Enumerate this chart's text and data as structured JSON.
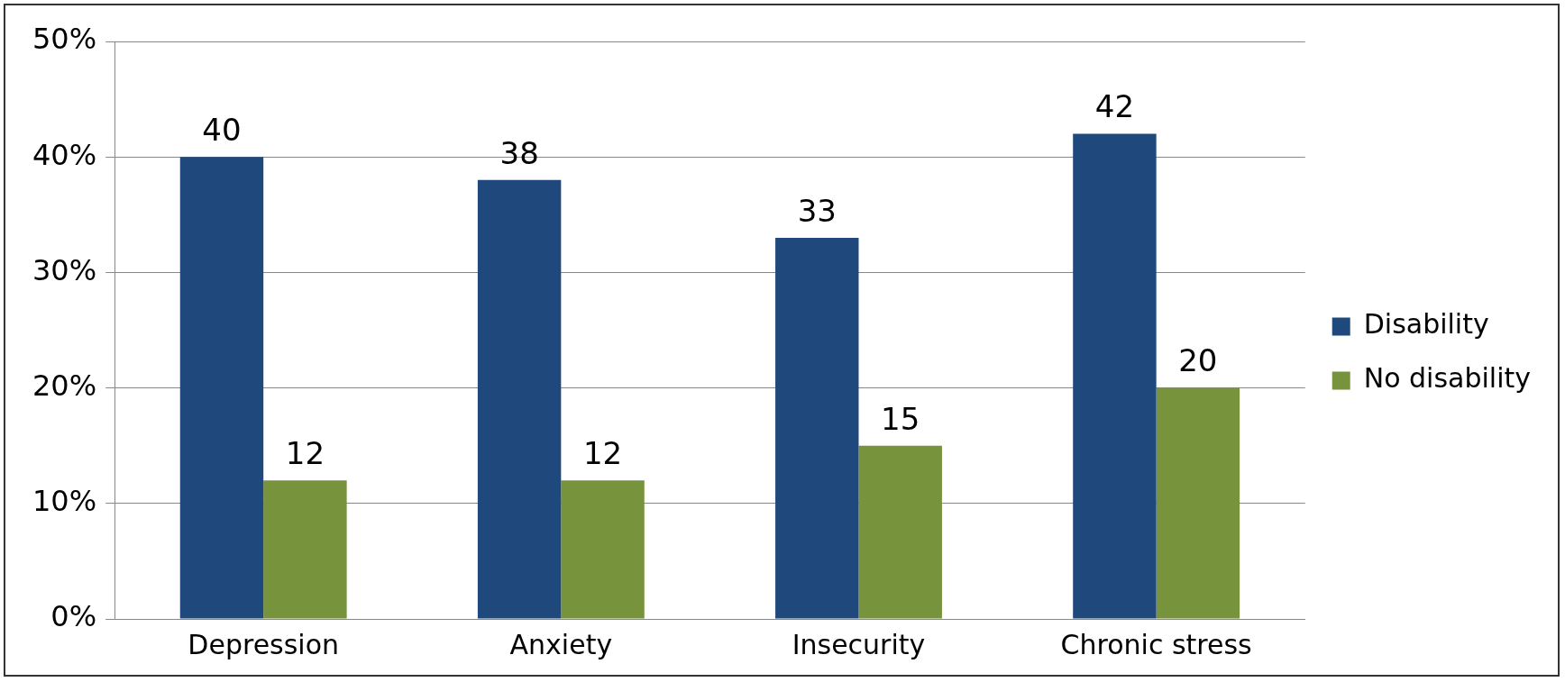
{
  "chart_data": {
    "type": "bar",
    "categories": [
      "Depression",
      "Anxiety",
      "Insecurity",
      "Chronic stress"
    ],
    "series": [
      {
        "name": "Disability",
        "color": "#1f497d",
        "values": [
          40,
          38,
          33,
          42
        ]
      },
      {
        "name": "No disability",
        "color": "#77933c",
        "values": [
          12,
          12,
          15,
          20
        ]
      }
    ],
    "ylim": [
      0,
      50
    ],
    "yticks": [
      {
        "value": 0,
        "label": "0%"
      },
      {
        "value": 10,
        "label": "10%"
      },
      {
        "value": 20,
        "label": "20%"
      },
      {
        "value": 30,
        "label": "30%"
      },
      {
        "value": 40,
        "label": "40%"
      },
      {
        "value": 50,
        "label": "50%"
      }
    ],
    "grid": "y",
    "legend": "right",
    "data_labels": true
  }
}
